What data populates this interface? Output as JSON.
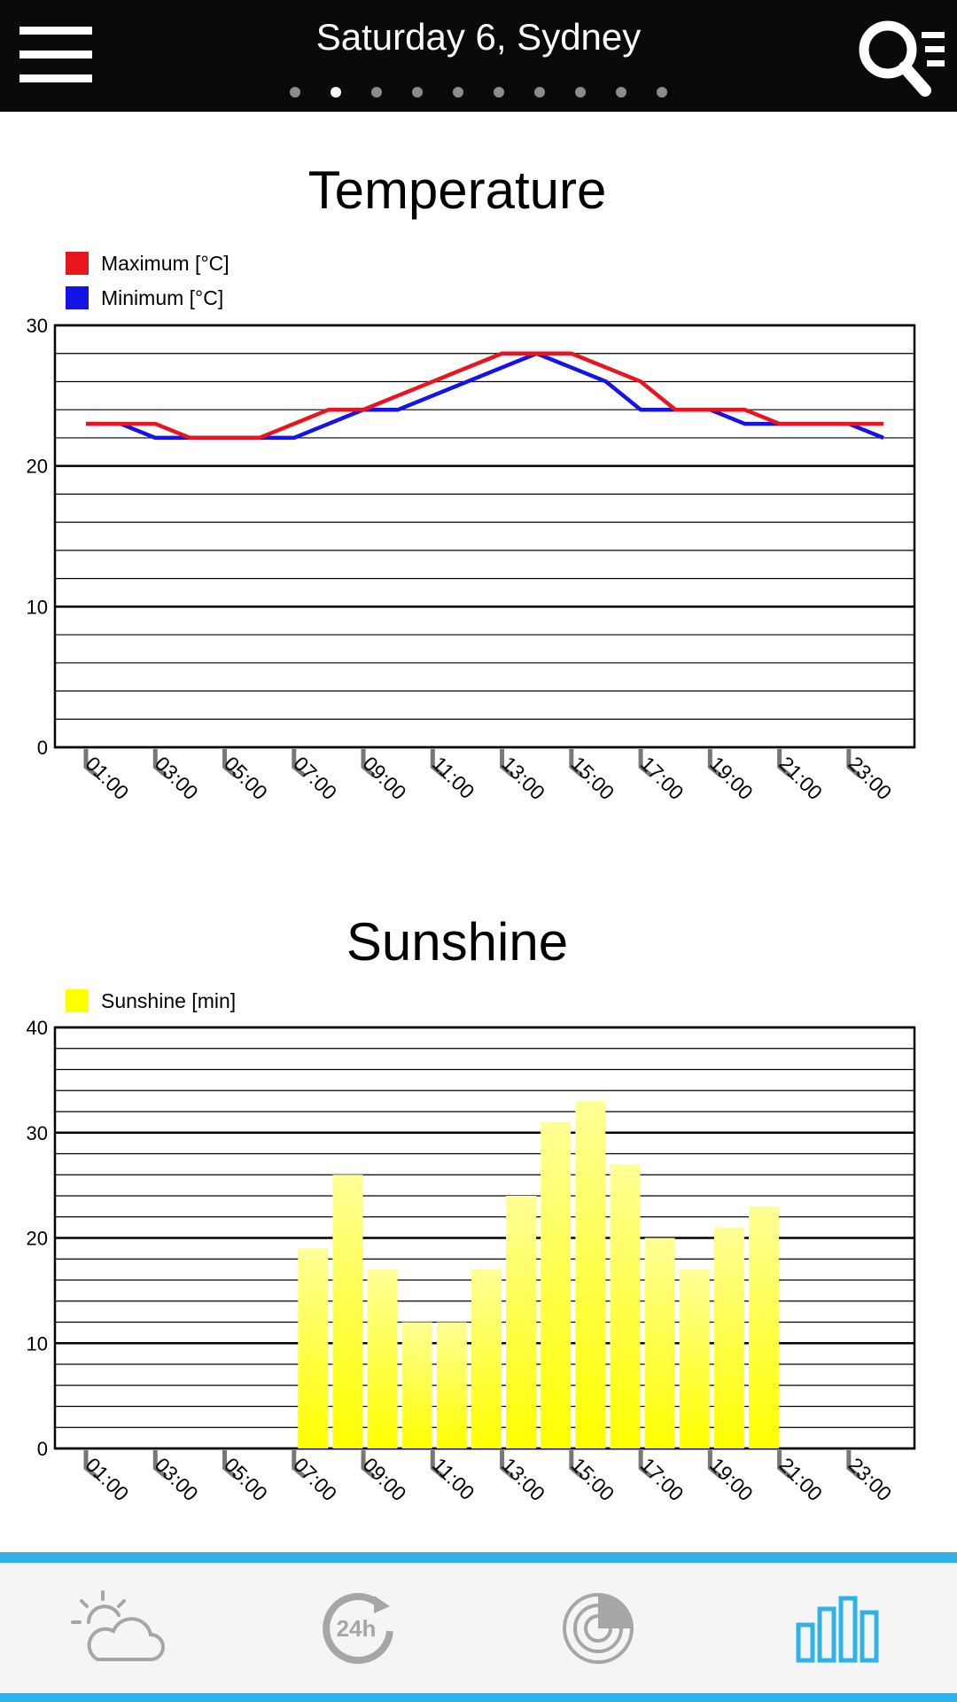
{
  "header": {
    "title": "Saturday 6, Sydney",
    "page_count": 10,
    "active_page": 1
  },
  "colors": {
    "max": "#e8141e",
    "min": "#1414e6",
    "sun": "#ffff00",
    "accent": "#31b2e6",
    "nav_icon": "#a6a6a6"
  },
  "icons": {
    "menu": "hamburger-menu-icon",
    "search": "search-list-icon",
    "nav": [
      "partly-cloudy-icon",
      "24h-forecast-icon",
      "radar-icon",
      "bar-chart-icon"
    ]
  },
  "chart_data": [
    {
      "type": "line",
      "title": "Temperature",
      "x": [
        "01:00",
        "02:00",
        "03:00",
        "04:00",
        "05:00",
        "06:00",
        "07:00",
        "08:00",
        "09:00",
        "10:00",
        "11:00",
        "12:00",
        "13:00",
        "14:00",
        "15:00",
        "16:00",
        "17:00",
        "18:00",
        "19:00",
        "20:00",
        "21:00",
        "22:00",
        "23:00",
        "24:00"
      ],
      "tick_labels": [
        "01:00",
        "03:00",
        "05:00",
        "07:00",
        "09:00",
        "11:00",
        "13:00",
        "15:00",
        "17:00",
        "19:00",
        "21:00",
        "23:00"
      ],
      "series": [
        {
          "name": "Maximum [°C]",
          "color": "#e8141e",
          "values": [
            23,
            23,
            23,
            22,
            22,
            22,
            23,
            24,
            24,
            25,
            26,
            27,
            28,
            28,
            28,
            27,
            26,
            24,
            24,
            24,
            23,
            23,
            23,
            23
          ]
        },
        {
          "name": "Minimum [°C]",
          "color": "#1414e6",
          "values": [
            23,
            23,
            22,
            22,
            22,
            22,
            22,
            23,
            24,
            24,
            25,
            26,
            27,
            28,
            27,
            26,
            24,
            24,
            24,
            23,
            23,
            23,
            23,
            22
          ]
        }
      ],
      "ylim": [
        0,
        30
      ],
      "y_ticks": [
        0,
        10,
        20,
        30
      ],
      "grid": true,
      "legend": "top-left"
    },
    {
      "type": "bar",
      "title": "Sunshine",
      "x": [
        "01:00",
        "02:00",
        "03:00",
        "04:00",
        "05:00",
        "06:00",
        "07:00",
        "08:00",
        "09:00",
        "10:00",
        "11:00",
        "12:00",
        "13:00",
        "14:00",
        "15:00",
        "16:00",
        "17:00",
        "18:00",
        "19:00",
        "20:00",
        "21:00",
        "22:00",
        "23:00",
        "24:00"
      ],
      "tick_labels": [
        "01:00",
        "03:00",
        "05:00",
        "07:00",
        "09:00",
        "11:00",
        "13:00",
        "15:00",
        "17:00",
        "19:00",
        "21:00",
        "23:00"
      ],
      "series": [
        {
          "name": "Sunshine [min]",
          "color": "#ffff00",
          "values": [
            0,
            0,
            0,
            0,
            0,
            0,
            19,
            26,
            17,
            12,
            12,
            17,
            24,
            31,
            33,
            27,
            20,
            17,
            21,
            23,
            0,
            0,
            0,
            0
          ]
        }
      ],
      "ylim": [
        0,
        40
      ],
      "y_ticks": [
        0,
        10,
        20,
        30,
        40
      ],
      "grid": true,
      "legend": "top-left"
    }
  ]
}
